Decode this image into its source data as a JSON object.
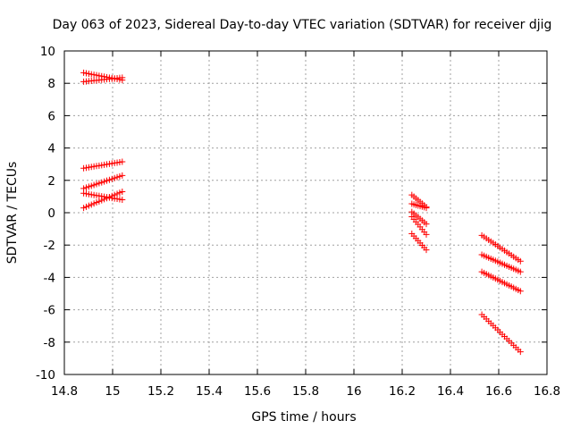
{
  "chart_data": {
    "type": "scatter",
    "title": "Day 063 of 2023, Sidereal Day-to-day VTEC variation (SDTVAR) for receiver djig",
    "xlabel": "GPS time / hours",
    "ylabel": "SDTVAR / TECUs",
    "xlim": [
      14.8,
      16.8
    ],
    "ylim": [
      -10,
      10
    ],
    "x_ticks": [
      14.8,
      15.0,
      15.2,
      15.4,
      15.6,
      15.8,
      16.0,
      16.2,
      16.4,
      16.6,
      16.8
    ],
    "x_tick_labels": [
      "14.8",
      "15",
      "15.2",
      "15.4",
      "15.6",
      "15.8",
      "16",
      "16.2",
      "16.4",
      "16.6",
      "16.8"
    ],
    "y_ticks": [
      -10,
      -8,
      -6,
      -4,
      -2,
      0,
      2,
      4,
      6,
      8,
      10
    ],
    "y_tick_labels": [
      "-10",
      "-8",
      "-6",
      "-4",
      "-2",
      "0",
      "2",
      "4",
      "6",
      "8",
      "10"
    ],
    "grid": true,
    "marker": "+",
    "marker_color": "#ff0000",
    "series": [
      {
        "x_start": 14.88,
        "x_end": 15.04,
        "y_start": 8.65,
        "y_end": 8.2,
        "n": 16
      },
      {
        "x_start": 14.88,
        "x_end": 15.04,
        "y_start": 8.1,
        "y_end": 8.35,
        "n": 16
      },
      {
        "x_start": 14.88,
        "x_end": 15.04,
        "y_start": 2.75,
        "y_end": 3.15,
        "n": 16
      },
      {
        "x_start": 14.88,
        "x_end": 15.04,
        "y_start": 1.5,
        "y_end": 2.3,
        "n": 16
      },
      {
        "x_start": 14.88,
        "x_end": 15.04,
        "y_start": 1.2,
        "y_end": 0.8,
        "n": 16
      },
      {
        "x_start": 14.88,
        "x_end": 15.04,
        "y_start": 0.3,
        "y_end": 1.3,
        "n": 16
      },
      {
        "x_start": 16.24,
        "x_end": 16.3,
        "y_start": 1.1,
        "y_end": 0.35,
        "n": 8
      },
      {
        "x_start": 16.24,
        "x_end": 16.3,
        "y_start": 0.55,
        "y_end": 0.3,
        "n": 8
      },
      {
        "x_start": 16.24,
        "x_end": 16.3,
        "y_start": 0.05,
        "y_end": -0.7,
        "n": 8
      },
      {
        "x_start": 16.24,
        "x_end": 16.3,
        "y_start": -0.25,
        "y_end": -1.35,
        "n": 8
      },
      {
        "x_start": 16.24,
        "x_end": 16.3,
        "y_start": -1.3,
        "y_end": -2.3,
        "n": 8
      },
      {
        "x_start": 16.53,
        "x_end": 16.69,
        "y_start": -1.4,
        "y_end": -3.0,
        "n": 18
      },
      {
        "x_start": 16.53,
        "x_end": 16.69,
        "y_start": -2.6,
        "y_end": -3.65,
        "n": 18
      },
      {
        "x_start": 16.53,
        "x_end": 16.69,
        "y_start": -3.65,
        "y_end": -4.85,
        "n": 18
      },
      {
        "x_start": 16.53,
        "x_end": 16.69,
        "y_start": -6.3,
        "y_end": -8.6,
        "n": 18
      }
    ]
  }
}
